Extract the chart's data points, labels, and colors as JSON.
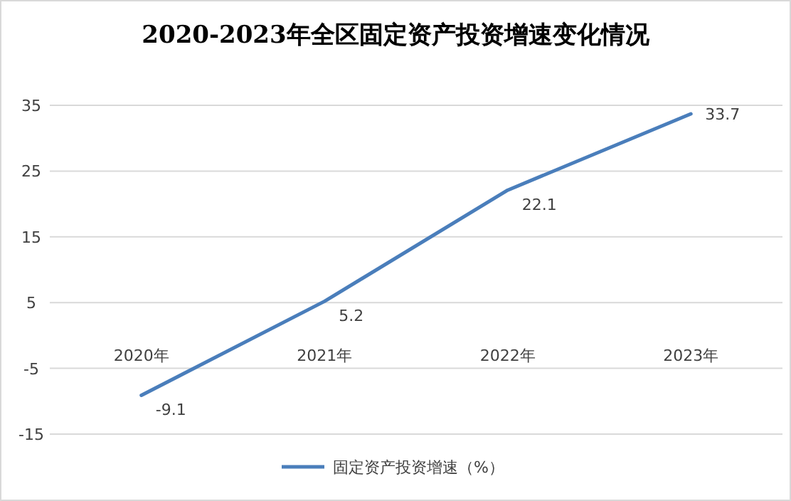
{
  "chart_data": {
    "type": "line",
    "title": "2020-2023年全区固定资产投资增速变化情况",
    "categories": [
      "2020年",
      "2021年",
      "2022年",
      "2023年"
    ],
    "series": [
      {
        "name": "固定资产投资增速（%）",
        "color": "#4a7ebb",
        "values": [
          -9.1,
          5.2,
          22.1,
          33.7
        ]
      }
    ],
    "ylim": [
      -15,
      35
    ],
    "yticks": [
      -15,
      -5,
      5,
      15,
      25,
      35
    ],
    "grid": "y",
    "data_labels": true,
    "legend": "bottom",
    "marker": "none",
    "line_style": "solid"
  }
}
